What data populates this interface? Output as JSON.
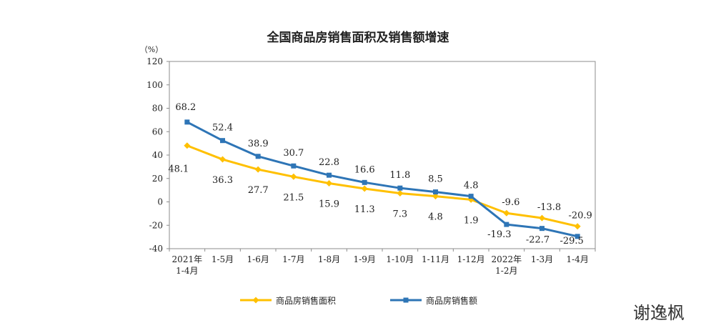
{
  "chart_data": {
    "type": "line",
    "title": "全国商品房销售面积及销售额增速",
    "ylabel": "（%）",
    "ylim": [
      -40,
      120
    ],
    "yticks": [
      120,
      100,
      80,
      60,
      40,
      20,
      0,
      -20,
      -40
    ],
    "grid": false,
    "legend_position": "bottom",
    "categories": [
      [
        "2021年",
        "1-4月"
      ],
      [
        "1-5月"
      ],
      [
        "1-6月"
      ],
      [
        "1-7月"
      ],
      [
        "1-8月"
      ],
      [
        "1-9月"
      ],
      [
        "1-10月"
      ],
      [
        "1-11月"
      ],
      [
        "1-12月"
      ],
      [
        "2022年",
        "1-2月"
      ],
      [
        "1-3月"
      ],
      [
        "1-4月"
      ]
    ],
    "series": [
      {
        "name": "商品房销售面积",
        "color": "#FFC000",
        "marker": "diamond",
        "values": [
          48.1,
          36.3,
          27.7,
          21.5,
          15.9,
          11.3,
          7.3,
          4.8,
          1.9,
          -9.6,
          -13.8,
          -20.9
        ]
      },
      {
        "name": "商品房销售额",
        "color": "#2E75B6",
        "marker": "square",
        "values": [
          68.2,
          52.4,
          38.9,
          30.7,
          22.8,
          16.6,
          11.8,
          8.5,
          4.8,
          -19.3,
          -22.7,
          -29.5
        ]
      }
    ]
  },
  "watermark": "谢逸枫"
}
